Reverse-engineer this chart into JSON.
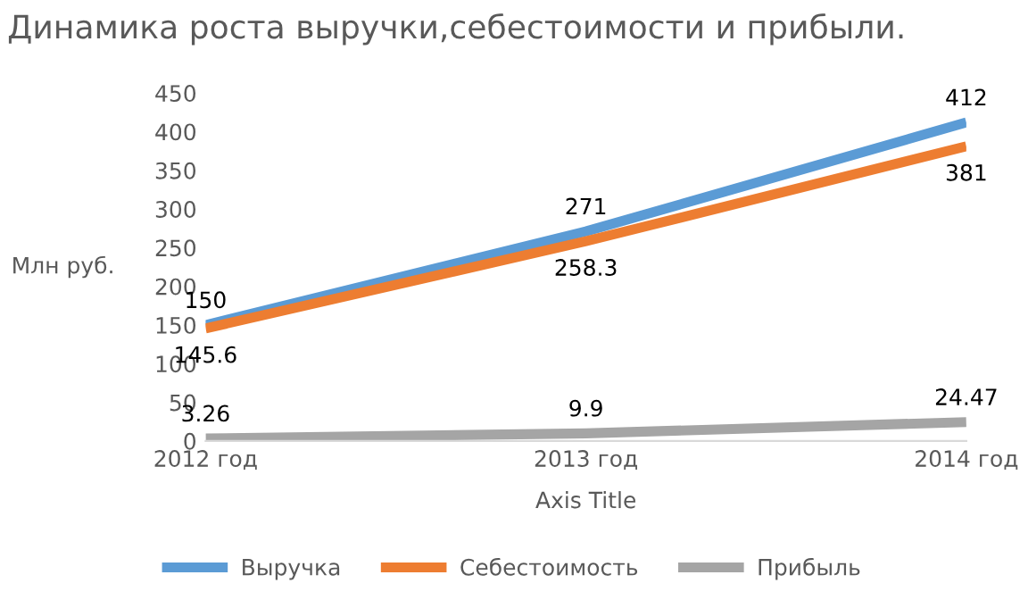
{
  "chart_data": {
    "type": "line",
    "title": "Динамика роста выручки,себестоимости и прибыли.",
    "xlabel": "Axis Title",
    "ylabel": "Млн руб.",
    "categories": [
      "2012 год",
      "2013 год",
      "2014 год"
    ],
    "series": [
      {
        "name": "Выручка",
        "color": "#5b9bd5",
        "values": [
          150,
          271,
          412
        ]
      },
      {
        "name": "Себестоимость",
        "color": "#ed7d31",
        "values": [
          145.6,
          258.3,
          381
        ]
      },
      {
        "name": "Прибыль",
        "color": "#a5a5a5",
        "values": [
          3.26,
          9.9,
          24.47
        ]
      }
    ],
    "ylim": [
      0,
      450
    ],
    "yticks": [
      0,
      50,
      100,
      150,
      200,
      250,
      300,
      350,
      400,
      450
    ],
    "grid": false,
    "legend": "bottom",
    "marker": "none",
    "line_style": "solid",
    "data_labels": true
  }
}
